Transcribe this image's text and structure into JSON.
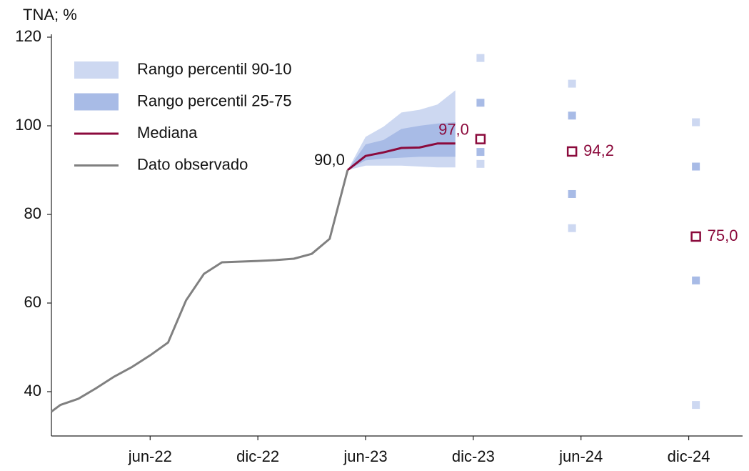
{
  "chart_data": {
    "type": "line",
    "y_axis_title": "TNA; %",
    "xlim": [
      0.5,
      39
    ],
    "xticks": [
      {
        "value": 6,
        "label": "jun-22"
      },
      {
        "value": 12,
        "label": "dic-22"
      },
      {
        "value": 18,
        "label": "jun-23"
      },
      {
        "value": 24,
        "label": "dic-23"
      },
      {
        "value": 30,
        "label": "jun-24"
      },
      {
        "value": 36,
        "label": "dic-24"
      }
    ],
    "ylim": [
      30,
      120
    ],
    "yticks": [
      40,
      60,
      80,
      100,
      120
    ],
    "legend": "upper-left",
    "series": [
      {
        "name": "Rango percentil 90-10",
        "type": "band",
        "color": "#cdd8f1",
        "x": [
          17,
          18,
          19,
          20,
          21,
          22,
          23
        ],
        "lower": [
          90,
          91,
          91,
          91,
          90.8,
          90.6,
          90.6
        ],
        "upper": [
          90,
          97.5,
          99.8,
          103,
          103.6,
          104.8,
          108
        ]
      },
      {
        "name": "Rango percentil 25-75",
        "type": "band",
        "color": "#a8bbe6",
        "x": [
          17,
          18,
          19,
          20,
          21,
          22,
          23
        ],
        "lower": [
          90,
          92.2,
          92.6,
          92.8,
          93,
          93,
          93
        ],
        "upper": [
          90,
          95.8,
          96.8,
          99.3,
          100,
          100.5,
          100.8
        ]
      },
      {
        "name": "Mediana",
        "type": "line",
        "color": "#8b0a3c",
        "x": [
          17,
          18,
          19,
          20,
          21,
          22,
          23
        ],
        "values": [
          90,
          93.2,
          94,
          95,
          95.1,
          96,
          96
        ]
      },
      {
        "name": "Dato observado",
        "type": "line",
        "color": "#808080",
        "x": [
          0.5,
          1,
          2,
          3,
          4,
          5,
          6,
          7,
          8,
          9,
          10,
          12,
          13,
          14,
          15,
          16,
          17
        ],
        "values": [
          35.5,
          37,
          38.4,
          40.8,
          43.4,
          45.6,
          48.2,
          51.1,
          60.6,
          66.6,
          69.2,
          69.5,
          69.7,
          70,
          71.1,
          74.5,
          90
        ],
        "end_label": "90,0"
      }
    ],
    "forecasts": {
      "x": [
        24.4,
        29.5,
        36.4
      ],
      "p90": [
        115.3,
        109.5,
        100.8
      ],
      "p75": [
        105.2,
        102.3,
        90.8
      ],
      "median": [
        97,
        94.2,
        75
      ],
      "median_labels": [
        "97,0",
        "94,2",
        "75,0"
      ],
      "p25": [
        94.1,
        84.6,
        65.1
      ],
      "p10": [
        91.4,
        76.9,
        37
      ]
    }
  }
}
